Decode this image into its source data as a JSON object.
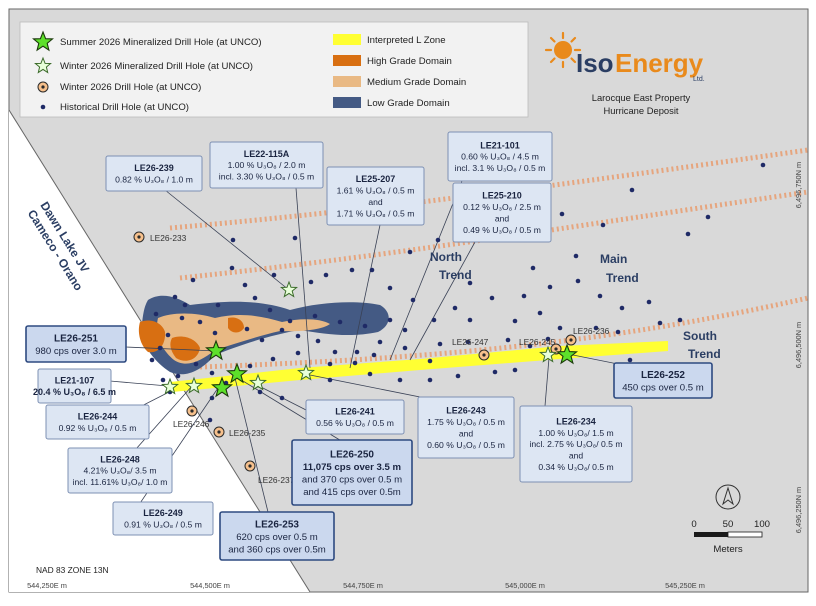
{
  "legend": {
    "left": [
      {
        "label": "Summer 2026 Mineralized Drill Hole (at UNCO)",
        "icon": "green-star-icon"
      },
      {
        "label": "Winter 2026 Mineralized Drill Hole (at UNCO)",
        "icon": "light-star-icon"
      },
      {
        "label": "Winter 2026 Drill Hole (at UNCO)",
        "icon": "ringed-dot-icon"
      },
      {
        "label": "Historical Drill Hole (at UNCO)",
        "icon": "dot-icon"
      }
    ],
    "right": [
      {
        "label": "Interpreted L Zone",
        "color": "#ffff33"
      },
      {
        "label": "High Grade Domain",
        "color": "#d86f12"
      },
      {
        "label": "Medium Grade Domain",
        "color": "#e9b984"
      },
      {
        "label": "Low Grade Domain",
        "color": "#445a84"
      }
    ]
  },
  "logo": {
    "brand_a": "Iso",
    "brand_b": "Energy",
    "suffix": "Ltd.",
    "property": "Larocque East Property",
    "deposit": "Hurricane Deposit"
  },
  "jv": {
    "line1": "Dawn Lake JV",
    "line2": "Cameco - Orano"
  },
  "trends": {
    "north": "North",
    "main": "Main",
    "south": "South",
    "word": "Trend"
  },
  "hole_labels": [
    "LE26-233",
    "LE26-247",
    "LE26-245",
    "LE26-236",
    "LE26-246",
    "LE26-235",
    "LE26-237"
  ],
  "callouts": {
    "le26_239": {
      "title": "LE26-239",
      "lines": [
        "0.82 % U₃O₈ / 1.0 m"
      ]
    },
    "le22_115a": {
      "title": "LE22-115A",
      "lines": [
        "1.00 % U₃O₈ / 2.0 m",
        "incl. 3.30 % U₃O₈ / 0.5 m"
      ]
    },
    "le25_207": {
      "title": "LE25-207",
      "lines": [
        "1.61 % U₃O₈ / 0.5 m",
        "and",
        "1.71 % U₃O₈ / 0.5 m"
      ]
    },
    "le21_101": {
      "title": "LE21-101",
      "lines": [
        "0.60 % U₃O₈ / 4.5 m",
        "incl. 3.1 % U₃O₈ / 0.5 m"
      ]
    },
    "le25_210": {
      "title": "LE25-210",
      "lines": [
        "0.12 % U₃O₈ / 2.5 m",
        "and",
        "0.49 % U₃O₈ / 0.5 m"
      ]
    },
    "le26_251": {
      "title": "LE26-251",
      "lines": [
        "980 cps over 3.0 m"
      ]
    },
    "le21_107": {
      "title": "LE21-107",
      "lines": [
        "20.4 % U₃O₈ / 6.5 m"
      ]
    },
    "le26_244": {
      "title": "LE26-244",
      "lines": [
        "0.92 % U₃O₈ / 0.5 m"
      ]
    },
    "le26_248": {
      "title": "LE26-248",
      "lines": [
        "4.21% U₃O₈/ 3.5 m",
        "incl. 11.61% U₃O₈/ 1.0 m"
      ]
    },
    "le26_249": {
      "title": "LE26-249",
      "lines": [
        "0.91 % U₃O₈ / 0.5 m"
      ]
    },
    "le26_253": {
      "title": "LE26-253",
      "lines": [
        "620 cps over 0.5 m",
        "and 360 cps over 0.5m"
      ]
    },
    "le26_241": {
      "title": "LE26-241",
      "lines": [
        "0.56 % U₃O₈ / 0.5 m"
      ]
    },
    "le26_250": {
      "title": "LE26-250",
      "lines": [
        "11,075 cps  over 3.5 m",
        "and 370 cps over 0.5 m",
        "and 415 cps over 0.5m"
      ]
    },
    "le26_243": {
      "title": "LE26-243",
      "lines": [
        "1.75 % U₃O₈ / 0.5 m",
        "and",
        "0.60 % U₃O₈ / 0.5 m"
      ]
    },
    "le26_234": {
      "title": "LE26-234",
      "lines": [
        "1.00 % U₃O₈/ 1.5 m",
        "incl. 2.75 % U₃O₈/ 0.5 m",
        "and",
        "0.34 % U₃O₈/ 0.5 m"
      ]
    },
    "le26_252": {
      "title": "LE26-252",
      "lines": [
        "450 cps over 0.5 m"
      ]
    }
  },
  "scale": {
    "ticks": [
      "0",
      "50",
      "100"
    ],
    "unit": "Meters"
  },
  "datum": "NAD 83 ZONE 13N",
  "eastings": [
    "544,250E m",
    "544,500E m",
    "544,750E m",
    "545,000E m",
    "545,250E m"
  ],
  "northings": [
    "6,496,750N m",
    "6,496,500N m",
    "6,496,250N m"
  ]
}
